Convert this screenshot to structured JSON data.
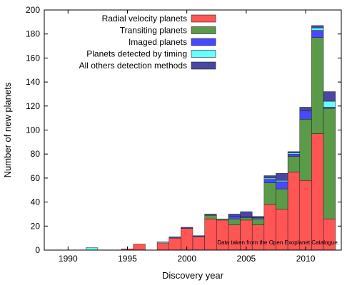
{
  "chart_data": {
    "type": "bar",
    "stacked": true,
    "xlabel": "Discovery year",
    "ylabel": "Number of new planets",
    "xlim": [
      1988,
      2013
    ],
    "ylim": [
      0,
      200
    ],
    "xticks": [
      1990,
      1995,
      2000,
      2005,
      2010
    ],
    "yticks": [
      0,
      20,
      40,
      60,
      80,
      100,
      120,
      140,
      160,
      180,
      200
    ],
    "grid": false,
    "legend_position": "top-left",
    "annotation": "Data taken from the Open Exoplanet Catalogue.",
    "years": [
      1989,
      1990,
      1991,
      1992,
      1993,
      1994,
      1995,
      1996,
      1997,
      1998,
      1999,
      2000,
      2001,
      2002,
      2003,
      2004,
      2005,
      2006,
      2007,
      2008,
      2009,
      2010,
      2011,
      2012
    ],
    "series": [
      {
        "name": "Radial velocity planets",
        "color": "#ff5555",
        "values": [
          0,
          0,
          0,
          0,
          0,
          0,
          1,
          5,
          0,
          6,
          10,
          18,
          11,
          26,
          25,
          21,
          25,
          21,
          38,
          34,
          65,
          58,
          97,
          26
        ]
      },
      {
        "name": "Transiting planets",
        "color": "#5a9a48",
        "values": [
          0,
          0,
          0,
          0,
          0,
          0,
          0,
          0,
          0,
          0,
          0,
          0,
          0,
          3,
          1,
          5,
          2,
          5,
          18,
          17,
          13,
          51,
          80,
          92
        ]
      },
      {
        "name": "Imaged planets",
        "color": "#4848ff",
        "values": [
          0,
          0,
          0,
          0,
          0,
          0,
          0,
          0,
          0,
          0,
          0,
          0,
          0,
          0,
          0,
          2,
          1,
          1,
          3,
          6,
          2,
          7,
          6,
          1
        ]
      },
      {
        "name": "Planets detected by timing",
        "color": "#66ffff",
        "values": [
          0,
          0,
          0,
          2,
          0,
          0,
          0,
          0,
          0,
          1,
          0,
          0,
          0,
          0,
          0,
          0,
          0,
          0,
          1,
          1,
          1,
          0,
          2,
          5
        ]
      },
      {
        "name": "All others detection methods",
        "color": "#4848a0",
        "values": [
          0,
          0,
          0,
          0,
          0,
          0,
          0,
          0,
          0,
          0,
          1,
          1,
          1,
          1,
          0,
          2,
          4,
          1,
          2,
          6,
          1,
          3,
          2,
          8
        ]
      }
    ]
  }
}
